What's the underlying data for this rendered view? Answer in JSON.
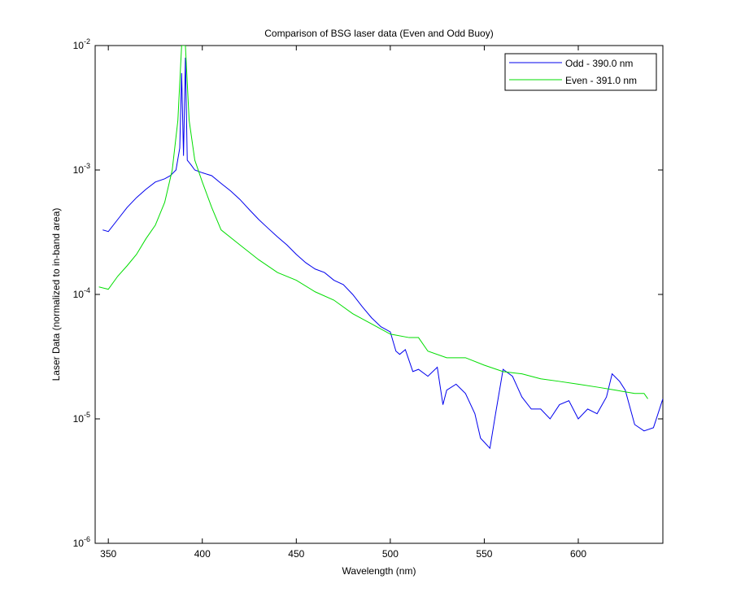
{
  "chart_data": {
    "type": "line",
    "title": "Comparison of BSG laser data (Even and Odd Buoy)",
    "xlabel": "Wavelength (nm)",
    "ylabel": "Laser Data (normalized to in-band area)",
    "yscale": "log",
    "legend": "upper right",
    "xlim": [
      343,
      645
    ],
    "xticks": [
      350,
      400,
      450,
      500,
      550,
      600
    ],
    "ylim": [
      1e-06,
      0.01
    ],
    "yticks": [
      {
        "value": 1e-06,
        "label": "10^-6"
      },
      {
        "value": 1e-05,
        "label": "10^-5"
      },
      {
        "value": 0.0001,
        "label": "10^-4"
      },
      {
        "value": 0.001,
        "label": "10^-3"
      },
      {
        "value": 0.01,
        "label": "10^-2"
      }
    ],
    "series": [
      {
        "name": "Odd - 390.0 nm",
        "color": "#0000ee",
        "x": [
          347,
          350,
          355,
          360,
          365,
          370,
          375,
          380,
          383,
          386,
          388,
          389,
          390,
          391,
          392,
          394,
          396,
          400,
          405,
          410,
          415,
          420,
          425,
          430,
          435,
          440,
          445,
          450,
          455,
          460,
          465,
          470,
          475,
          480,
          485,
          490,
          495,
          500,
          503,
          505,
          508,
          512,
          515,
          520,
          525,
          528,
          530,
          535,
          540,
          545,
          548,
          550,
          553,
          556,
          560,
          565,
          570,
          575,
          580,
          585,
          590,
          595,
          600,
          605,
          610,
          615,
          618,
          622,
          625,
          630,
          635,
          640,
          645
        ],
        "values": [
          0.00033,
          0.00032,
          0.0004,
          0.0005,
          0.0006,
          0.0007,
          0.0008,
          0.00085,
          0.0009,
          0.001,
          0.0015,
          0.006,
          0.0013,
          0.008,
          0.0012,
          0.0011,
          0.001,
          0.00095,
          0.0009,
          0.00078,
          0.00068,
          0.00058,
          0.00048,
          0.0004,
          0.00034,
          0.00029,
          0.00025,
          0.00021,
          0.00018,
          0.00016,
          0.00015,
          0.00013,
          0.00012,
          0.0001,
          8e-05,
          6.5e-05,
          5.5e-05,
          5e-05,
          3.5e-05,
          3.3e-05,
          3.6e-05,
          2.4e-05,
          2.5e-05,
          2.2e-05,
          2.6e-05,
          1.3e-05,
          1.7e-05,
          1.9e-05,
          1.6e-05,
          1.1e-05,
          7e-06,
          6.5e-06,
          5.8e-06,
          1.1e-05,
          2.5e-05,
          2.2e-05,
          1.5e-05,
          1.2e-05,
          1.2e-05,
          1e-05,
          1.3e-05,
          1.4e-05,
          1e-05,
          1.2e-05,
          1.1e-05,
          1.5e-05,
          2.3e-05,
          2e-05,
          1.7e-05,
          9e-06,
          8e-06,
          8.5e-06,
          1.45e-05
        ]
      },
      {
        "name": "Even - 391.0 nm",
        "color": "#00dd00",
        "x": [
          345,
          350,
          355,
          360,
          365,
          370,
          375,
          380,
          384,
          387,
          389,
          391,
          393,
          396,
          400,
          405,
          410,
          420,
          430,
          440,
          450,
          460,
          470,
          480,
          490,
          500,
          510,
          515,
          520,
          530,
          540,
          550,
          560,
          570,
          580,
          590,
          600,
          610,
          620,
          630,
          635,
          637
        ],
        "values": [
          0.000115,
          0.00011,
          0.00014,
          0.00017,
          0.00021,
          0.00028,
          0.00036,
          0.00055,
          0.001,
          0.0025,
          0.01,
          0.01,
          0.0025,
          0.0012,
          0.0008,
          0.0005,
          0.00033,
          0.00025,
          0.00019,
          0.00015,
          0.00013,
          0.000105,
          9e-05,
          7e-05,
          5.8e-05,
          4.8e-05,
          4.5e-05,
          4.5e-05,
          3.5e-05,
          3.1e-05,
          3.1e-05,
          2.7e-05,
          2.4e-05,
          2.3e-05,
          2.1e-05,
          2e-05,
          1.9e-05,
          1.8e-05,
          1.7e-05,
          1.6e-05,
          1.6e-05,
          1.45e-05
        ]
      }
    ]
  }
}
